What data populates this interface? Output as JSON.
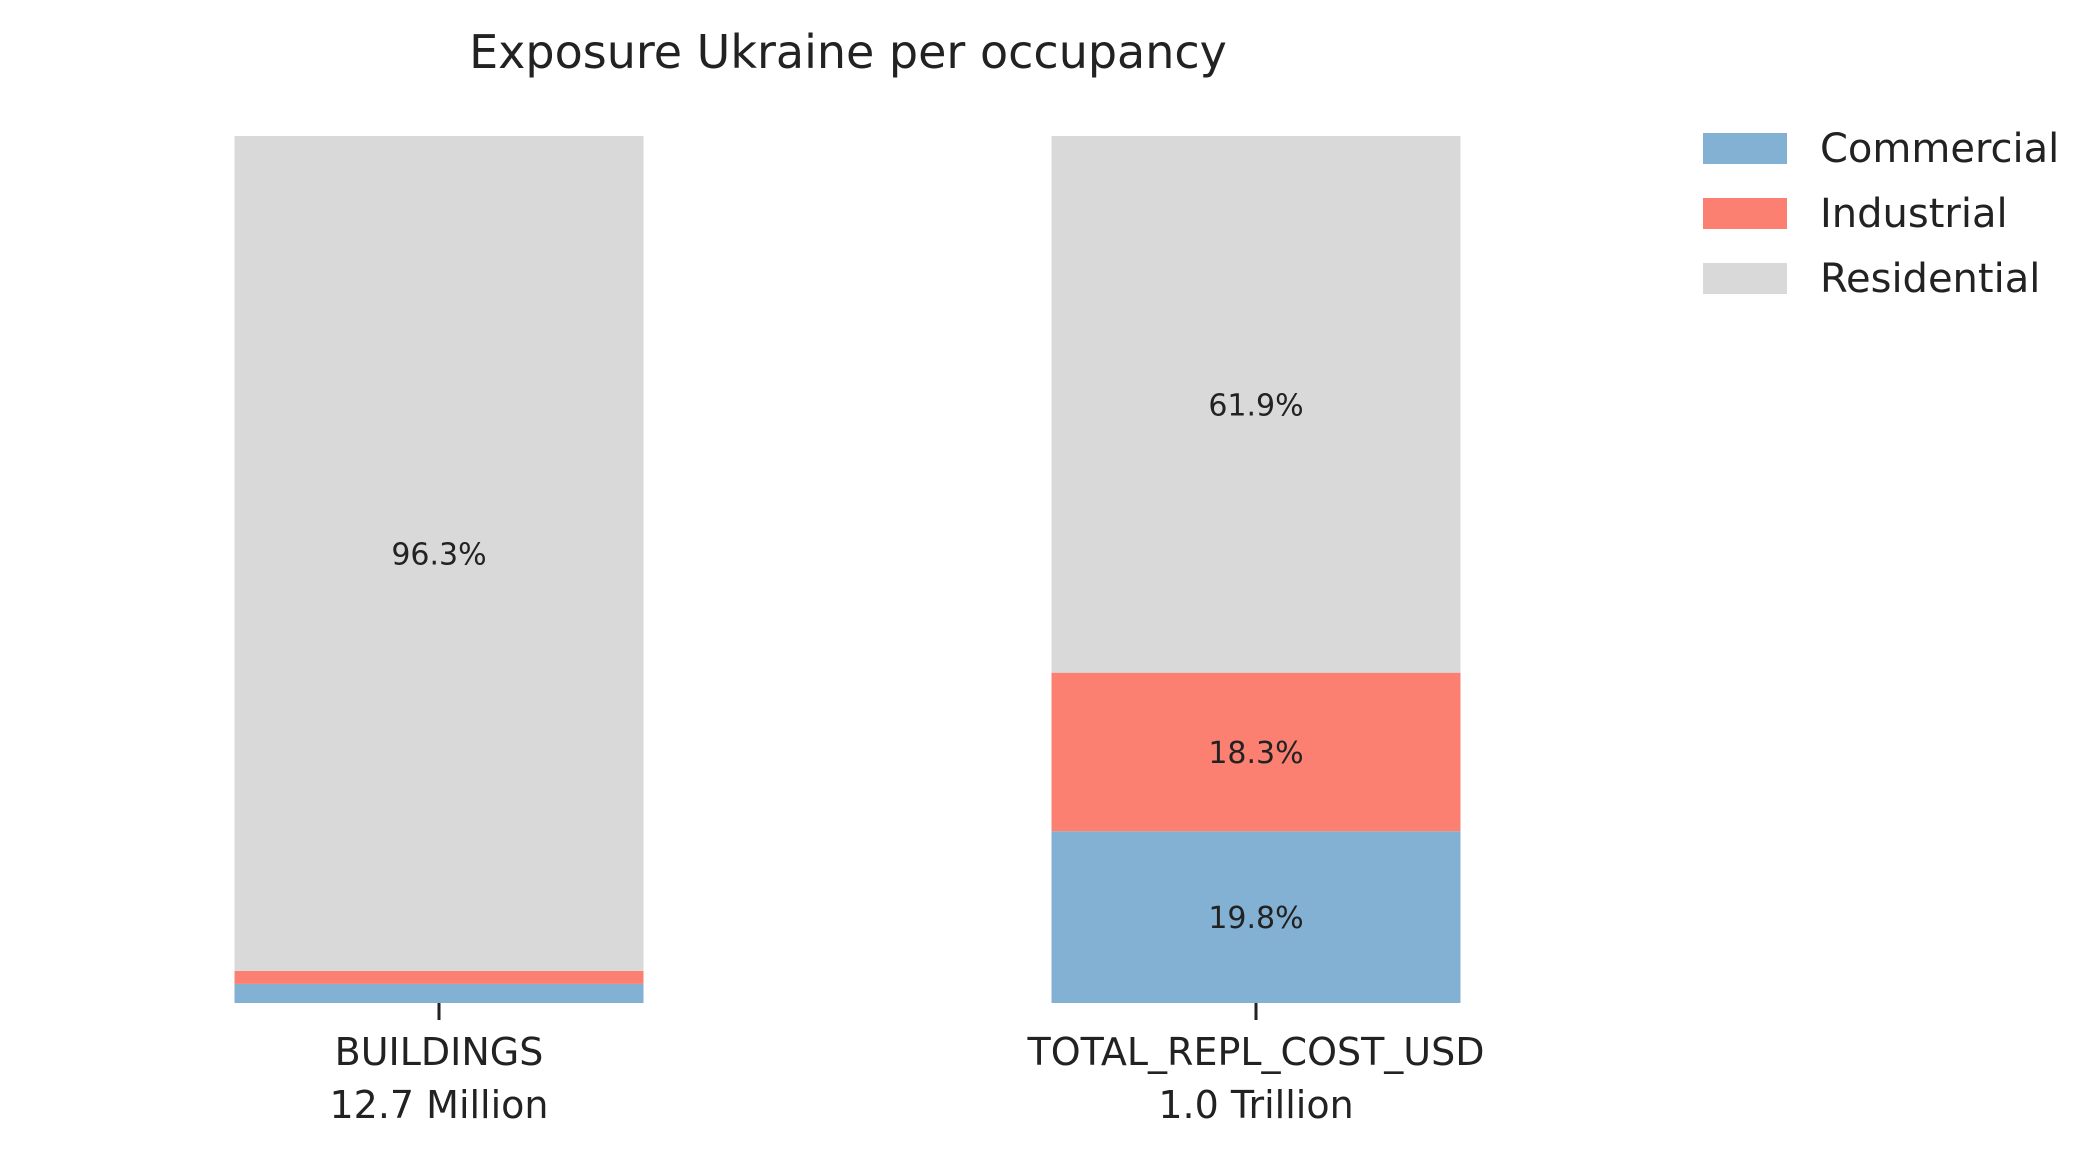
{
  "chart_data": {
    "type": "bar",
    "stacked": true,
    "title": "Exposure Ukraine per occupancy",
    "categories": [
      "BUILDINGS",
      "TOTAL_REPL_COST_USD"
    ],
    "category_totals": [
      "12.7 Million",
      "1.0 Trillion"
    ],
    "series": [
      {
        "name": "Commercial",
        "color": "#82b1d3",
        "values": [
          2.2,
          19.8
        ],
        "labels": [
          "",
          "19.8%"
        ]
      },
      {
        "name": "Industrial",
        "color": "#fb8072",
        "values": [
          1.5,
          18.3
        ],
        "labels": [
          "",
          "18.3%"
        ]
      },
      {
        "name": "Residential",
        "color": "#d9d9d9",
        "values": [
          96.3,
          61.9
        ],
        "labels": [
          "96.3%",
          "61.9%"
        ]
      }
    ],
    "ylim": [
      0,
      100
    ],
    "xlabel": "",
    "ylabel": "",
    "grid": false,
    "legend_position": "top-right"
  }
}
